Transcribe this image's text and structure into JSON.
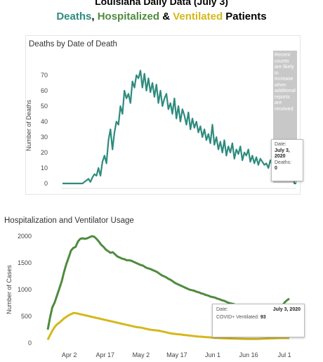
{
  "header": {
    "title": "Louisiana Daily Data (July 3)",
    "subtitle_part1": "Deaths",
    "subtitle_sep1": ", ",
    "subtitle_part2": "Hospitalized",
    "subtitle_sep2": " & ",
    "subtitle_part3": "Ventilated",
    "subtitle_part4": " Patients"
  },
  "colors": {
    "deaths": "#2e8b7d",
    "hospitalized": "#4f8b3f",
    "ventilated": "#d4b81c",
    "shade": "#c8c8c8"
  },
  "deaths_panel": {
    "shade_note": "Recent counts are likely to increase when additional reports are received",
    "tooltip": {
      "date_label": "Date:",
      "date_value": "July 3, 2020",
      "metric_label": "Deaths:",
      "metric_value": "0"
    }
  },
  "hosp_panel": {
    "tooltip": {
      "date_label": "Date:",
      "date_value": "July 3, 2020",
      "metric_label": "COVID+ Ventilated:",
      "metric_value": "93"
    }
  },
  "chart_data": [
    {
      "type": "line",
      "title": "Deaths by Date of Death",
      "xlabel": "",
      "ylabel": "Number of Deaths",
      "ylim": [
        0,
        75
      ],
      "yticks": [
        0,
        10,
        20,
        30,
        40,
        50,
        60,
        70
      ],
      "x_start": "2020-03-09",
      "x_end": "2020-07-03",
      "grid": false,
      "series": [
        {
          "values": [
            0,
            0,
            0,
            0,
            0,
            0,
            0,
            0,
            0,
            0,
            0,
            1,
            2,
            3,
            1,
            4,
            6,
            5,
            10,
            5,
            14,
            18,
            13,
            28,
            35,
            22,
            33,
            40,
            38,
            50,
            45,
            60,
            55,
            58,
            52,
            66,
            62,
            70,
            68,
            73,
            62,
            71,
            60,
            68,
            59,
            65,
            56,
            64,
            52,
            60,
            50,
            55,
            58,
            48,
            52,
            45,
            55,
            42,
            50,
            40,
            48,
            44,
            38,
            46,
            35,
            42,
            36,
            40,
            33,
            37,
            30,
            35,
            28,
            32,
            26,
            38,
            25,
            30,
            22,
            27,
            20,
            28,
            18,
            24,
            20,
            26,
            16,
            22,
            19,
            24,
            15,
            20,
            18,
            22,
            14,
            18,
            13,
            17,
            12,
            16,
            14,
            12,
            13,
            10,
            15,
            12,
            14,
            11,
            13,
            9,
            12,
            10,
            11,
            18,
            8,
            13,
            0,
            0
          ]
        }
      ]
    },
    {
      "type": "line",
      "title": "Hospitalization and Ventilator Usage",
      "xlabel": "",
      "ylabel": "Number of Cases",
      "ylim": [
        0,
        2000
      ],
      "yticks": [
        0,
        500,
        1000,
        1500,
        2000
      ],
      "x_start": "2020-03-24",
      "x_end": "2020-07-03",
      "xticks": [
        "Apr 2",
        "Apr 17",
        "May 2",
        "May 17",
        "Jun 1",
        "Jun 16",
        "Jul 1"
      ],
      "grid": false,
      "series": [
        {
          "name": "Hospitalized",
          "values": [
            250,
            480,
            670,
            760,
            890,
            1020,
            1150,
            1330,
            1480,
            1600,
            1730,
            1780,
            1800,
            1900,
            1950,
            1960,
            1950,
            1960,
            1980,
            2000,
            1990,
            1950,
            1900,
            1840,
            1800,
            1750,
            1720,
            1690,
            1700,
            1660,
            1620,
            1600,
            1580,
            1570,
            1550,
            1550,
            1540,
            1520,
            1500,
            1480,
            1460,
            1450,
            1420,
            1400,
            1390,
            1370,
            1350,
            1330,
            1300,
            1270,
            1250,
            1230,
            1200,
            1180,
            1150,
            1120,
            1100,
            1080,
            1060,
            1040,
            1020,
            1000,
            990,
            980,
            960,
            950,
            930,
            920,
            900,
            890,
            870,
            860,
            850,
            830,
            820,
            800,
            790,
            770,
            750,
            740,
            730,
            710,
            700,
            690,
            680,
            670,
            670,
            660,
            650,
            650,
            640,
            640,
            630,
            630,
            620,
            620,
            610,
            610,
            600,
            620,
            650,
            700,
            760,
            800,
            830
          ]
        },
        {
          "name": "COVID+ Ventilated",
          "values": [
            60,
            150,
            230,
            300,
            350,
            380,
            420,
            460,
            490,
            520,
            540,
            560,
            560,
            550,
            540,
            530,
            520,
            510,
            500,
            490,
            480,
            470,
            460,
            450,
            440,
            430,
            420,
            410,
            400,
            390,
            380,
            370,
            360,
            350,
            340,
            330,
            320,
            310,
            300,
            295,
            290,
            280,
            270,
            260,
            250,
            245,
            240,
            235,
            230,
            220,
            210,
            200,
            190,
            180,
            175,
            170,
            165,
            160,
            155,
            150,
            145,
            140,
            135,
            130,
            125,
            120,
            118,
            115,
            110,
            108,
            105,
            100,
            98,
            96,
            94,
            92,
            90,
            88,
            86,
            85,
            84,
            82,
            80,
            80,
            78,
            78,
            76,
            76,
            75,
            75,
            76,
            78,
            80,
            82,
            84,
            86,
            88,
            90,
            91,
            92,
            93,
            93,
            93,
            93,
            93
          ]
        }
      ]
    }
  ]
}
